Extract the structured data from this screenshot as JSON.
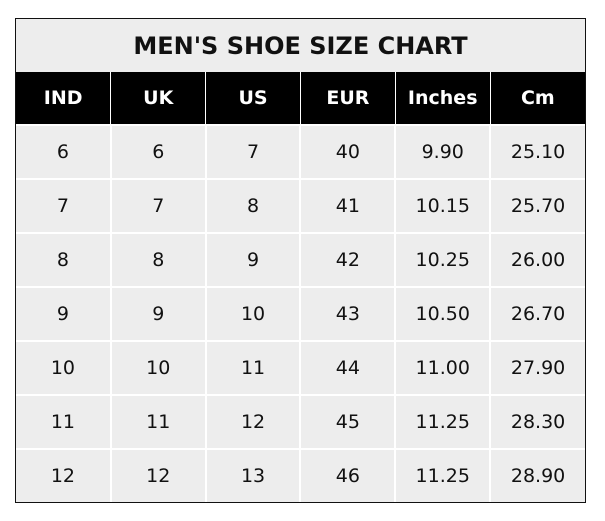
{
  "title": "MEN'S SHOE SIZE CHART",
  "headers": [
    "IND",
    "UK",
    "US",
    "EUR",
    "Inches",
    "Cm"
  ],
  "rows": [
    [
      "6",
      "6",
      "7",
      "40",
      "9.90",
      "25.10"
    ],
    [
      "7",
      "7",
      "8",
      "41",
      "10.15",
      "25.70"
    ],
    [
      "8",
      "8",
      "9",
      "42",
      "10.25",
      "26.00"
    ],
    [
      "9",
      "9",
      "10",
      "43",
      "10.50",
      "26.70"
    ],
    [
      "10",
      "10",
      "11",
      "44",
      "11.00",
      "27.90"
    ],
    [
      "11",
      "11",
      "12",
      "45",
      "11.25",
      "28.30"
    ],
    [
      "12",
      "12",
      "13",
      "46",
      "11.25",
      "28.90"
    ]
  ],
  "colors": {
    "header_bg": "#000000",
    "cell_bg": "#ededed",
    "grid": "#ffffff"
  }
}
